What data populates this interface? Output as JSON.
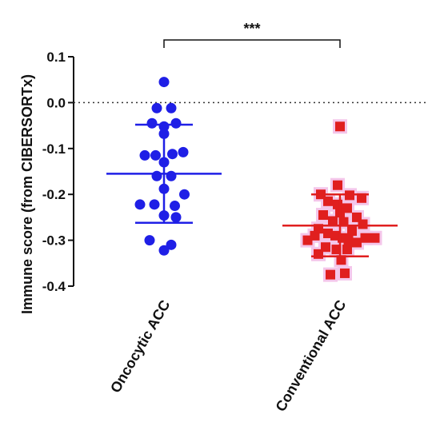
{
  "chart_data": {
    "type": "scatter",
    "ylabel": "Immune score (from CIBERSORTx)",
    "xlabel": "",
    "ylim": [
      -0.4,
      0.1
    ],
    "yticks": [
      0.1,
      0.0,
      -0.1,
      -0.2,
      -0.3,
      -0.4
    ],
    "ytick_labels": [
      "0.1",
      "0.0",
      "-0.1",
      "-0.2",
      "-0.3",
      "-0.4"
    ],
    "reference_line": {
      "y": 0.0,
      "style": "dotted"
    },
    "categories": [
      "Oncocytic ACC",
      "Conventional ACC"
    ],
    "significance": {
      "label": "***",
      "between": [
        "Oncocytic ACC",
        "Conventional ACC"
      ]
    },
    "series": [
      {
        "category": "Oncocytic ACC",
        "marker": "circle",
        "color": "#1f1fe6",
        "mean": -0.155,
        "error_upper": -0.048,
        "error_lower": -0.262,
        "points": [
          {
            "offset": 0.0,
            "y": 0.045
          },
          {
            "offset": -0.3,
            "y": -0.012
          },
          {
            "offset": 0.3,
            "y": -0.012
          },
          {
            "offset": -0.5,
            "y": -0.045
          },
          {
            "offset": 0.0,
            "y": -0.052
          },
          {
            "offset": 0.5,
            "y": -0.045
          },
          {
            "offset": 0.0,
            "y": -0.068
          },
          {
            "offset": -0.8,
            "y": -0.115
          },
          {
            "offset": -0.35,
            "y": -0.115
          },
          {
            "offset": 0.35,
            "y": -0.112
          },
          {
            "offset": 0.8,
            "y": -0.108
          },
          {
            "offset": 0.0,
            "y": -0.13
          },
          {
            "offset": -0.3,
            "y": -0.16
          },
          {
            "offset": 0.3,
            "y": -0.16
          },
          {
            "offset": 0.0,
            "y": -0.188
          },
          {
            "offset": 0.85,
            "y": -0.2
          },
          {
            "offset": -1.0,
            "y": -0.222
          },
          {
            "offset": -0.4,
            "y": -0.222
          },
          {
            "offset": 0.45,
            "y": -0.225
          },
          {
            "offset": 0.0,
            "y": -0.246
          },
          {
            "offset": 0.5,
            "y": -0.25
          },
          {
            "offset": -0.6,
            "y": -0.3
          },
          {
            "offset": 0.3,
            "y": -0.31
          },
          {
            "offset": 0.0,
            "y": -0.322
          }
        ]
      },
      {
        "category": "Conventional ACC",
        "marker": "square",
        "color": "#e01f1f",
        "mean": -0.268,
        "error_upper": -0.2,
        "error_lower": -0.335,
        "points": [
          {
            "offset": 0.0,
            "y": -0.052
          },
          {
            "offset": -0.1,
            "y": -0.18
          },
          {
            "offset": -0.8,
            "y": -0.2
          },
          {
            "offset": 0.4,
            "y": -0.202
          },
          {
            "offset": 0.9,
            "y": -0.208
          },
          {
            "offset": -0.5,
            "y": -0.215
          },
          {
            "offset": -0.1,
            "y": -0.222
          },
          {
            "offset": 0.3,
            "y": -0.23
          },
          {
            "offset": 0.0,
            "y": -0.24
          },
          {
            "offset": -0.7,
            "y": -0.245
          },
          {
            "offset": 0.7,
            "y": -0.25
          },
          {
            "offset": -0.3,
            "y": -0.258
          },
          {
            "offset": 0.15,
            "y": -0.26
          },
          {
            "offset": 0.95,
            "y": -0.265
          },
          {
            "offset": -0.9,
            "y": -0.275
          },
          {
            "offset": 0.5,
            "y": -0.28
          },
          {
            "offset": -0.5,
            "y": -0.285
          },
          {
            "offset": -1.35,
            "y": -0.3
          },
          {
            "offset": -1.05,
            "y": -0.29
          },
          {
            "offset": -0.2,
            "y": -0.29
          },
          {
            "offset": 0.1,
            "y": -0.295
          },
          {
            "offset": 0.35,
            "y": -0.3
          },
          {
            "offset": 1.05,
            "y": -0.295
          },
          {
            "offset": 1.45,
            "y": -0.295
          },
          {
            "offset": -0.6,
            "y": -0.315
          },
          {
            "offset": 0.7,
            "y": -0.305
          },
          {
            "offset": -0.15,
            "y": -0.32
          },
          {
            "offset": 0.3,
            "y": -0.32
          },
          {
            "offset": -0.9,
            "y": -0.33
          },
          {
            "offset": 0.05,
            "y": -0.343
          },
          {
            "offset": -0.4,
            "y": -0.375
          },
          {
            "offset": 0.2,
            "y": -0.372
          }
        ]
      }
    ]
  }
}
